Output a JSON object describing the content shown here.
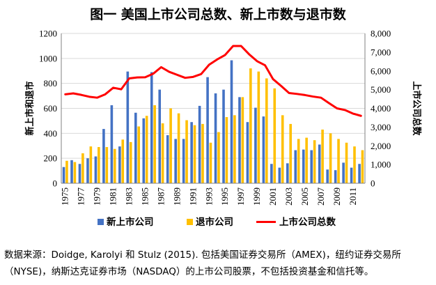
{
  "title": "图一 美国上市公司总数、新上市数与退市数",
  "source_note": "数据来源：Doidge, Karolyi 和 Stulz (2015). 包括美国证券交易所（AMEX)，纽约证券交易所（NYSE)，纳斯达克证券市场（NASDAQ）的上市公司股票，不包括投资基金和信托等。",
  "colors": {
    "new_listings": "#4472C4",
    "delistings": "#FFC000",
    "total": "#FF0000"
  },
  "chart_data": {
    "type": "bar",
    "title": "图一 美国上市公司总数、新上市数与退市数",
    "ylabel": "新上市和退市",
    "y2label": "上市公司总数",
    "ylim": [
      0,
      1200
    ],
    "y2lim": [
      0,
      8000
    ],
    "yticks": [
      "0",
      "200",
      "400",
      "600",
      "800",
      "1000",
      "1200"
    ],
    "y2ticks": [
      "0",
      "1,000",
      "2,000",
      "3,000",
      "4,000",
      "5,000",
      "6,000",
      "7,000",
      "8,000"
    ],
    "grid": true,
    "legend": "bottom",
    "categories": [
      "1975",
      "1976",
      "1977",
      "1978",
      "1979",
      "1980",
      "1981",
      "1982",
      "1983",
      "1984",
      "1985",
      "1986",
      "1987",
      "1988",
      "1989",
      "1990",
      "1991",
      "1992",
      "1993",
      "1994",
      "1995",
      "1996",
      "1997",
      "1998",
      "1999",
      "2000",
      "2001",
      "2002",
      "2003",
      "2004",
      "2005",
      "2006",
      "2007",
      "2008",
      "2009",
      "2010",
      "2011",
      "2012"
    ],
    "x_tick_labels": [
      "1975",
      "1977",
      "1979",
      "1981",
      "1983",
      "1985",
      "1987",
      "1989",
      "1991",
      "1993",
      "1995",
      "1997",
      "1999",
      "2001",
      "2003",
      "2005",
      "2007",
      "2009",
      "2011"
    ],
    "series": [
      {
        "name": "新上市公司",
        "type": "bar",
        "axis": "left",
        "values": [
          130,
          185,
          155,
          200,
          215,
          435,
          625,
          295,
          895,
          565,
          520,
          890,
          750,
          385,
          355,
          355,
          490,
          620,
          850,
          720,
          750,
          985,
          690,
          490,
          605,
          535,
          155,
          125,
          160,
          265,
          270,
          265,
          310,
          110,
          105,
          165,
          125,
          155
        ]
      },
      {
        "name": "退市公司",
        "type": "bar",
        "axis": "left",
        "values": [
          180,
          170,
          240,
          295,
          290,
          290,
          275,
          350,
          330,
          455,
          540,
          625,
          480,
          600,
          560,
          505,
          465,
          475,
          325,
          410,
          530,
          545,
          690,
          920,
          895,
          840,
          760,
          545,
          475,
          355,
          365,
          345,
          430,
          400,
          355,
          325,
          295,
          265
        ]
      },
      {
        "name": "上市公司总数",
        "type": "line",
        "axis": "right",
        "values": [
          4750,
          4800,
          4720,
          4620,
          4570,
          4750,
          5100,
          5020,
          5600,
          5650,
          5660,
          5850,
          6200,
          5950,
          5790,
          5630,
          5680,
          5830,
          6330,
          6610,
          6850,
          7330,
          7330,
          6890,
          6520,
          6300,
          5560,
          5200,
          4820,
          4770,
          4710,
          4630,
          4570,
          4280,
          4000,
          3910,
          3720,
          3600
        ]
      }
    ]
  }
}
